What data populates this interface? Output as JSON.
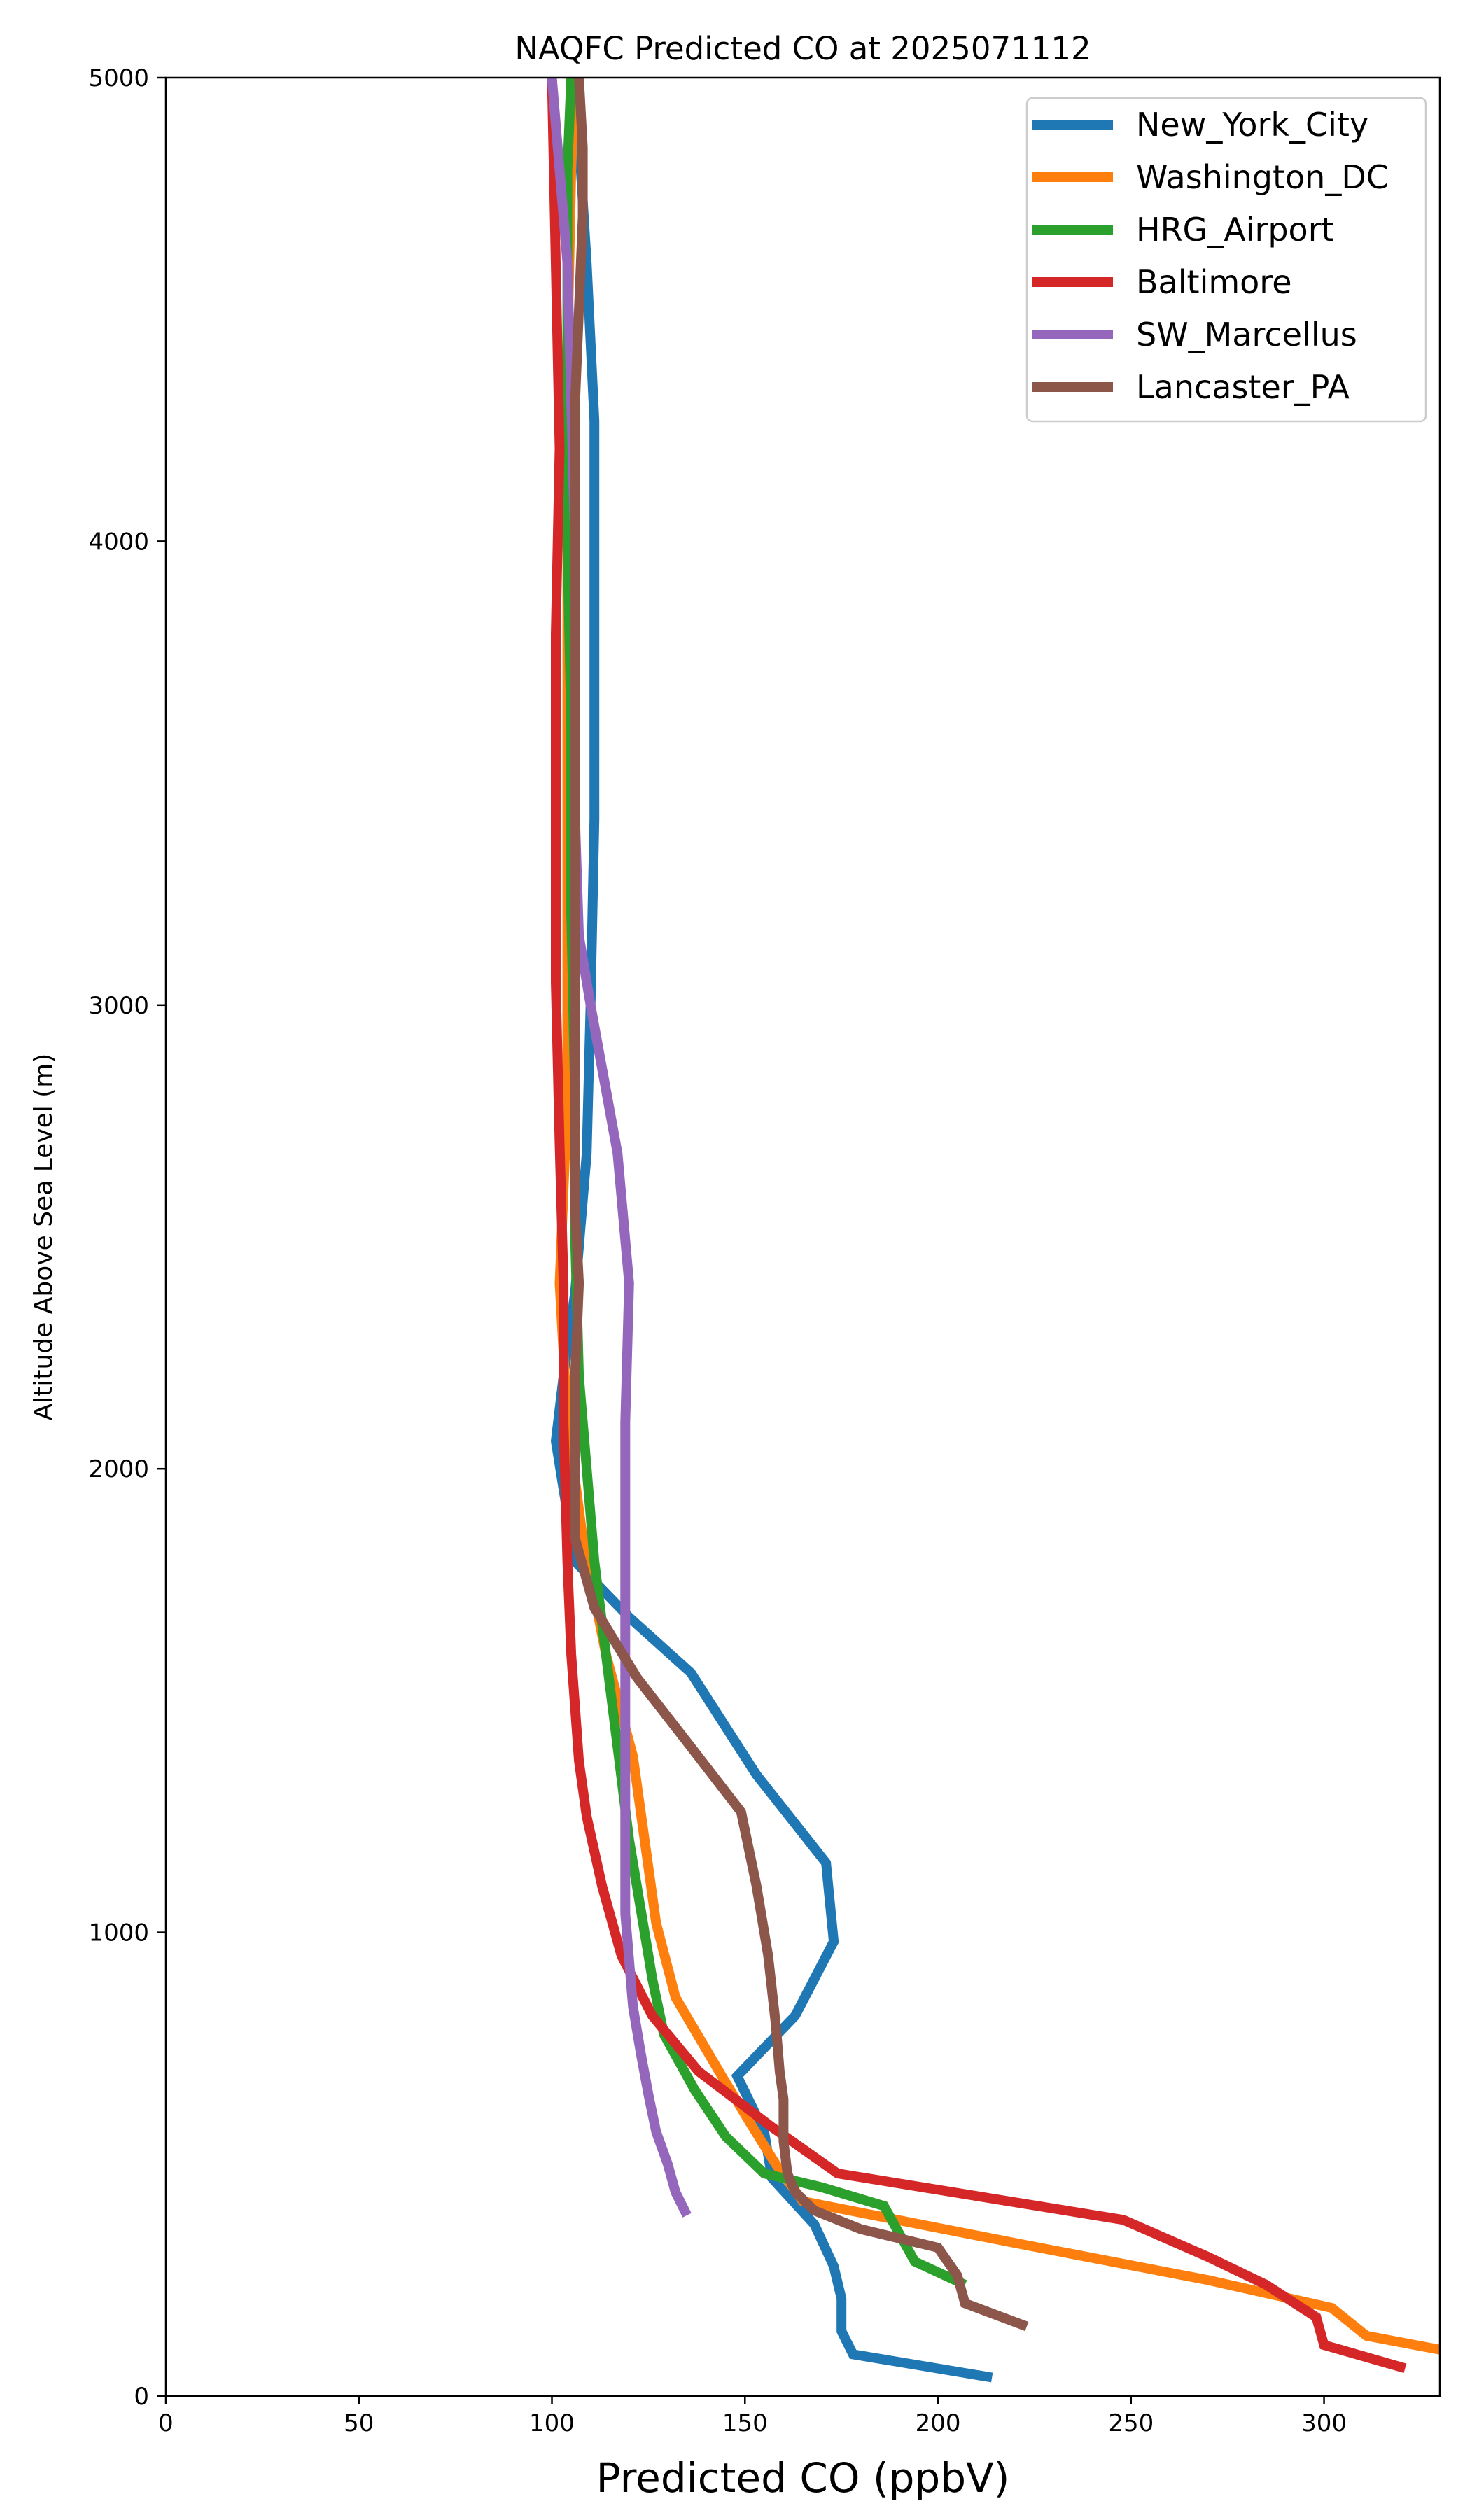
{
  "chart_data": {
    "type": "line",
    "title": "NAQFC Predicted CO at 2025071112",
    "xlabel": "Predicted CO (ppbV)",
    "ylabel": "Altitude Above Sea Level (m)",
    "xlim": [
      0,
      330
    ],
    "ylim": [
      0,
      5000
    ],
    "xticks": [
      "0",
      "50",
      "100",
      "150",
      "200",
      "250",
      "300"
    ],
    "yticks": [
      "0",
      "1000",
      "2000",
      "3000",
      "4000",
      "5000"
    ],
    "grid": false,
    "legend_position": "top-right",
    "series": [
      {
        "name": "New_York_City",
        "color": "#1f77b4",
        "points": [
          [
            214,
            40
          ],
          [
            178,
            90
          ],
          [
            175,
            140
          ],
          [
            175,
            210
          ],
          [
            173,
            280
          ],
          [
            168,
            370
          ],
          [
            157,
            470
          ],
          [
            155,
            570
          ],
          [
            148,
            690
          ],
          [
            163,
            820
          ],
          [
            173,
            980
          ],
          [
            171,
            1150
          ],
          [
            153,
            1340
          ],
          [
            136,
            1560
          ],
          [
            120,
            1680
          ],
          [
            106,
            1800
          ],
          [
            101,
            2060
          ],
          [
            103,
            2200
          ],
          [
            106,
            2380
          ],
          [
            109,
            2680
          ],
          [
            110,
            3000
          ],
          [
            111,
            3400
          ],
          [
            111,
            3800
          ],
          [
            111,
            4260
          ],
          [
            109,
            4600
          ],
          [
            106,
            5000
          ]
        ]
      },
      {
        "name": "Washington_DC",
        "color": "#ff7f0e",
        "points": [
          [
            330,
            100
          ],
          [
            311,
            130
          ],
          [
            302,
            190
          ],
          [
            270,
            250
          ],
          [
            220,
            330
          ],
          [
            165,
            420
          ],
          [
            158,
            500
          ],
          [
            152,
            580
          ],
          [
            144,
            690
          ],
          [
            132,
            860
          ],
          [
            127,
            1020
          ],
          [
            124,
            1200
          ],
          [
            121,
            1380
          ],
          [
            114,
            1600
          ],
          [
            108,
            1850
          ],
          [
            104,
            2100
          ],
          [
            102,
            2400
          ],
          [
            104,
            2800
          ],
          [
            104,
            3200
          ],
          [
            104,
            3600
          ],
          [
            104,
            4000
          ],
          [
            104,
            4400
          ],
          [
            105,
            4800
          ],
          [
            106,
            5000
          ]
        ]
      },
      {
        "name": "HRG_Airport",
        "color": "#2ca02c",
        "points": [
          [
            207,
            240
          ],
          [
            194,
            290
          ],
          [
            190,
            350
          ],
          [
            186,
            410
          ],
          [
            170,
            450
          ],
          [
            155,
            480
          ],
          [
            145,
            560
          ],
          [
            137,
            660
          ],
          [
            129,
            780
          ],
          [
            126,
            900
          ],
          [
            123,
            1050
          ],
          [
            120,
            1200
          ],
          [
            117,
            1400
          ],
          [
            114,
            1600
          ],
          [
            111,
            1800
          ],
          [
            109,
            2000
          ],
          [
            107,
            2200
          ],
          [
            106,
            2500
          ],
          [
            106,
            2800
          ],
          [
            105,
            3200
          ],
          [
            105,
            3600
          ],
          [
            104,
            4000
          ],
          [
            104,
            4400
          ],
          [
            104,
            4800
          ],
          [
            105,
            5000
          ]
        ]
      },
      {
        "name": "Baltimore",
        "color": "#d62728",
        "points": [
          [
            321,
            60
          ],
          [
            300,
            110
          ],
          [
            298,
            170
          ],
          [
            285,
            240
          ],
          [
            270,
            300
          ],
          [
            248,
            380
          ],
          [
            174,
            480
          ],
          [
            157,
            580
          ],
          [
            138,
            700
          ],
          [
            126,
            820
          ],
          [
            118,
            950
          ],
          [
            113,
            1100
          ],
          [
            109,
            1250
          ],
          [
            107,
            1370
          ],
          [
            105,
            1600
          ],
          [
            104,
            1800
          ],
          [
            103,
            2100
          ],
          [
            103,
            2400
          ],
          [
            102,
            2700
          ],
          [
            101,
            3050
          ],
          [
            101,
            3450
          ],
          [
            101,
            3800
          ],
          [
            102,
            4200
          ],
          [
            101,
            4600
          ],
          [
            100,
            5000
          ]
        ]
      },
      {
        "name": "SW_Marcellus",
        "color": "#9467bd",
        "points": [
          [
            135,
            390
          ],
          [
            132,
            440
          ],
          [
            130,
            500
          ],
          [
            127,
            570
          ],
          [
            125,
            650
          ],
          [
            123,
            740
          ],
          [
            121,
            840
          ],
          [
            120,
            940
          ],
          [
            119,
            1040
          ],
          [
            119,
            1140
          ],
          [
            119,
            1300
          ],
          [
            119,
            1500
          ],
          [
            119,
            1700
          ],
          [
            119,
            1900
          ],
          [
            119,
            2100
          ],
          [
            120,
            2400
          ],
          [
            117,
            2680
          ],
          [
            110,
            3000
          ],
          [
            107,
            3150
          ],
          [
            106,
            3400
          ],
          [
            106,
            3700
          ],
          [
            106,
            4000
          ],
          [
            105,
            4300
          ],
          [
            104,
            4600
          ],
          [
            102,
            4800
          ],
          [
            100,
            5000
          ]
        ]
      },
      {
        "name": "Lancaster_PA",
        "color": "#8c564b",
        "points": [
          [
            223,
            150
          ],
          [
            207,
            200
          ],
          [
            205,
            260
          ],
          [
            200,
            320
          ],
          [
            180,
            360
          ],
          [
            168,
            400
          ],
          [
            163,
            440
          ],
          [
            161,
            480
          ],
          [
            160,
            550
          ],
          [
            160,
            640
          ],
          [
            159,
            700
          ],
          [
            158,
            800
          ],
          [
            156,
            950
          ],
          [
            153,
            1100
          ],
          [
            149,
            1260
          ],
          [
            136,
            1400
          ],
          [
            122,
            1550
          ],
          [
            111,
            1700
          ],
          [
            106,
            1850
          ],
          [
            106,
            2000
          ],
          [
            106,
            2200
          ],
          [
            107,
            2400
          ],
          [
            106,
            2560
          ],
          [
            106,
            2800
          ],
          [
            106,
            3100
          ],
          [
            106,
            3400
          ],
          [
            106,
            3700
          ],
          [
            106,
            4000
          ],
          [
            106,
            4300
          ],
          [
            107,
            4500
          ],
          [
            108,
            4700
          ],
          [
            108,
            4850
          ],
          [
            107,
            5000
          ]
        ]
      }
    ]
  }
}
